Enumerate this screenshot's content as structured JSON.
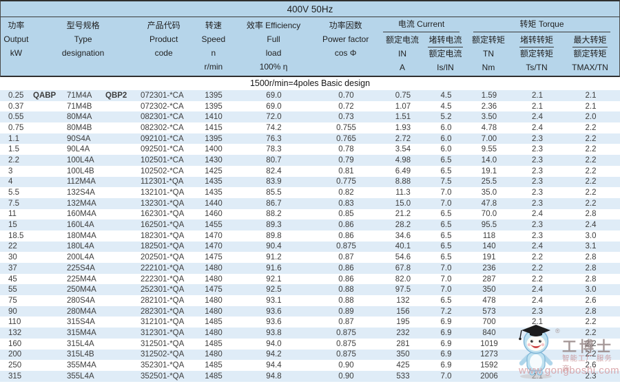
{
  "title": "400V 50Hz",
  "subtitle": "1500r/min=4poles Basic design",
  "header": {
    "output": [
      "功率",
      "Output",
      "kW",
      ""
    ],
    "type": [
      "型号规格",
      "Type",
      "designation",
      ""
    ],
    "code": [
      "产品代码",
      "Product",
      "code",
      ""
    ],
    "speed": [
      "转速",
      "Speed",
      "n",
      "r/min"
    ],
    "efficiency": [
      "效率 Efficiency",
      "Full",
      "load",
      "100% η"
    ],
    "power_factor": [
      "功率因数",
      "Power factor",
      "cos Φ",
      ""
    ],
    "current_group": "电流 Current",
    "rated_current": [
      "额定电流",
      "IN",
      "A"
    ],
    "locked_current": {
      "num": "堵转电流",
      "den": "额定电流",
      "ratio": "Is/IN"
    },
    "torque_group": "转矩 Torque",
    "rated_torque": [
      "额定转矩",
      "TN",
      "Nm"
    ],
    "locked_torque": {
      "num": "堵转转矩",
      "den": "额定转矩",
      "ratio": "Ts/TN"
    },
    "max_torque": {
      "num": "最大转矩",
      "den": "额定转矩",
      "ratio": "TMAX/TN"
    }
  },
  "table": {
    "series": {
      "prefix": "QABP",
      "suffix": "QBP2"
    },
    "columns": [
      "output_kw",
      "type",
      "product_code",
      "speed_rpm",
      "efficiency_pct",
      "cos_phi",
      "in_a",
      "is_in",
      "tn_nm",
      "ts_tn",
      "tmax_tn"
    ],
    "rows": [
      [
        "0.25",
        "71M4A",
        "072301-*CA",
        "1395",
        "69.0",
        "0.70",
        "0.75",
        "4.5",
        "1.59",
        "2.1",
        "2.1"
      ],
      [
        "0.37",
        "71M4B",
        "072302-*CA",
        "1395",
        "69.0",
        "0.72",
        "1.07",
        "4.5",
        "2.36",
        "2.1",
        "2.1"
      ],
      [
        "0.55",
        "80M4A",
        "082301-*CA",
        "1410",
        "72.0",
        "0.73",
        "1.51",
        "5.2",
        "3.50",
        "2.4",
        "2.0"
      ],
      [
        "0.75",
        "80M4B",
        "082302-*CA",
        "1415",
        "74.2",
        "0.755",
        "1.93",
        "6.0",
        "4.78",
        "2.4",
        "2.2"
      ],
      [
        "1.1",
        "90S4A",
        "092101-*CA",
        "1395",
        "76.3",
        "0.765",
        "2.72",
        "6.0",
        "7.00",
        "2.3",
        "2.2"
      ],
      [
        "1.5",
        "90L4A",
        "092501-*CA",
        "1400",
        "78.3",
        "0.78",
        "3.54",
        "6.0",
        "9.55",
        "2.3",
        "2.2"
      ],
      [
        "2.2",
        "100L4A",
        "102501-*CA",
        "1430",
        "80.7",
        "0.79",
        "4.98",
        "6.5",
        "14.0",
        "2.3",
        "2.2"
      ],
      [
        "3",
        "100L4B",
        "102502-*CA",
        "1425",
        "82.4",
        "0.81",
        "6.49",
        "6.5",
        "19.1",
        "2.3",
        "2.2"
      ],
      [
        "4",
        "112M4A",
        "112301-*QA",
        "1435",
        "83.9",
        "0.775",
        "8.88",
        "7.5",
        "25.5",
        "2.3",
        "2.2"
      ],
      [
        "5.5",
        "132S4A",
        "132101-*QA",
        "1435",
        "85.5",
        "0.82",
        "11.3",
        "7.0",
        "35.0",
        "2.3",
        "2.2"
      ],
      [
        "7.5",
        "132M4A",
        "132301-*QA",
        "1440",
        "86.7",
        "0.83",
        "15.0",
        "7.0",
        "47.8",
        "2.3",
        "2.2"
      ],
      [
        "11",
        "160M4A",
        "162301-*QA",
        "1460",
        "88.2",
        "0.85",
        "21.2",
        "6.5",
        "70.0",
        "2.4",
        "2.8"
      ],
      [
        "15",
        "160L4A",
        "162501-*QA",
        "1455",
        "89.3",
        "0.86",
        "28.2",
        "6.5",
        "95.5",
        "2.3",
        "2.4"
      ],
      [
        "18.5",
        "180M4A",
        "182301-*QA",
        "1470",
        "89.8",
        "0.86",
        "34.6",
        "6.5",
        "118",
        "2.3",
        "3.0"
      ],
      [
        "22",
        "180L4A",
        "182501-*QA",
        "1470",
        "90.4",
        "0.875",
        "40.1",
        "6.5",
        "140",
        "2.4",
        "3.1"
      ],
      [
        "30",
        "200L4A",
        "202501-*QA",
        "1475",
        "91.2",
        "0.87",
        "54.6",
        "6.5",
        "191",
        "2.2",
        "2.8"
      ],
      [
        "37",
        "225S4A",
        "222101-*QA",
        "1480",
        "91.6",
        "0.86",
        "67.8",
        "7.0",
        "236",
        "2.2",
        "2.8"
      ],
      [
        "45",
        "225M4A",
        "222301-*QA",
        "1480",
        "92.1",
        "0.86",
        "82.0",
        "7.0",
        "287",
        "2.2",
        "2.8"
      ],
      [
        "55",
        "250M4A",
        "252301-*QA",
        "1475",
        "92.5",
        "0.88",
        "97.5",
        "7.0",
        "350",
        "2.4",
        "3.0"
      ],
      [
        "75",
        "280S4A",
        "282101-*QA",
        "1480",
        "93.1",
        "0.88",
        "132",
        "6.5",
        "478",
        "2.4",
        "2.6"
      ],
      [
        "90",
        "280M4A",
        "282301-*QA",
        "1480",
        "93.6",
        "0.89",
        "156",
        "7.2",
        "573",
        "2.3",
        "2.8"
      ],
      [
        "110",
        "315S4A",
        "312101-*QA",
        "1485",
        "93.6",
        "0.87",
        "195",
        "6.9",
        "700",
        "2.1",
        "2.2"
      ],
      [
        "132",
        "315M4A",
        "312301-*QA",
        "1480",
        "93.8",
        "0.875",
        "232",
        "6.9",
        "840",
        "2.1",
        "2.2"
      ],
      [
        "160",
        "315L4A",
        "312501-*QA",
        "1485",
        "94.0",
        "0.875",
        "281",
        "6.9",
        "1019",
        "2.1",
        "2.2"
      ],
      [
        "200",
        "315L4B",
        "312502-*QA",
        "1480",
        "94.2",
        "0.875",
        "350",
        "6.9",
        "1273",
        "2.1",
        "2.2"
      ],
      [
        "250",
        "355M4A",
        "352301-*QA",
        "1485",
        "94.4",
        "0.90",
        "425",
        "6.9",
        "1592",
        "2.1",
        "2.6"
      ],
      [
        "315",
        "355L4A",
        "352501-*QA",
        "1485",
        "94.8",
        "0.90",
        "533",
        "7.0",
        "2006",
        "2.1",
        "2.3"
      ]
    ]
  },
  "watermark": {
    "brand": "工博士",
    "reg": "®",
    "tagline": "智能工厂 服务商",
    "url": "www.gongboshi.com"
  },
  "colors": {
    "header_blue": "#b6d5ea",
    "stripe_blue": "#dfecf7",
    "border_dark": "#2f2f2f",
    "text": "#3d3d3d",
    "watermark_pink": "#d6a0a4"
  }
}
